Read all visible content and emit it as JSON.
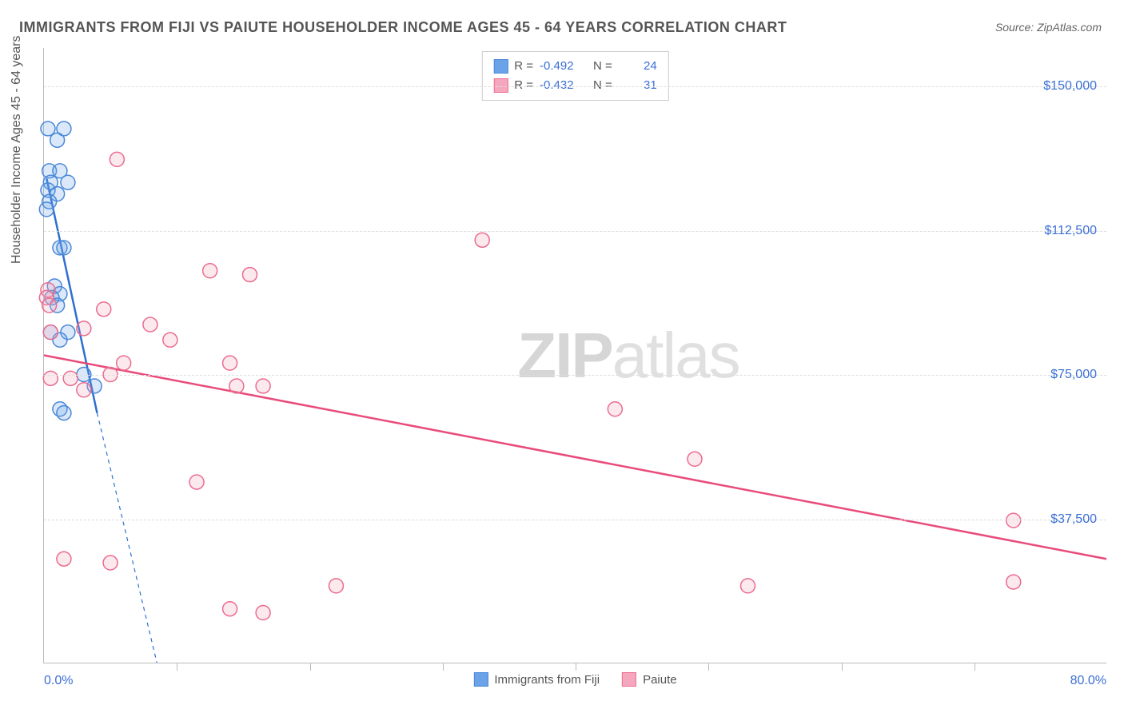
{
  "title": "IMMIGRANTS FROM FIJI VS PAIUTE HOUSEHOLDER INCOME AGES 45 - 64 YEARS CORRELATION CHART",
  "source_label": "Source: ZipAtlas.com",
  "ylabel": "Householder Income Ages 45 - 64 years",
  "watermark_a": "ZIP",
  "watermark_b": "atlas",
  "chart": {
    "type": "scatter",
    "background_color": "#ffffff",
    "axis_color": "#bbbbbb",
    "grid_color": "#dddddd",
    "tick_label_color": "#3b6fd6",
    "label_color": "#555555",
    "title_fontsize": 18,
    "label_fontsize": 16,
    "tick_fontsize": 16,
    "xlim": [
      0,
      80
    ],
    "ylim": [
      0,
      160000
    ],
    "x_axis_label_left": "0.0%",
    "x_axis_label_right": "80.0%",
    "yticks": [
      37500,
      75000,
      112500,
      150000
    ],
    "ytick_labels": [
      "$37,500",
      "$75,000",
      "$112,500",
      "$150,000"
    ],
    "xtick_positions": [
      0,
      10,
      20,
      30,
      40,
      50,
      60,
      70,
      80
    ],
    "marker_radius": 9,
    "marker_fill_opacity": 0.25,
    "marker_stroke_width": 1.5,
    "trend_line_width": 2.5,
    "series": [
      {
        "name": "Immigrants from Fiji",
        "color": "#6ba3e8",
        "stroke": "#4a88d8",
        "trend_color": "#2f6fd0",
        "R": -0.492,
        "N": 24,
        "trend_segment": {
          "x1": 0.2,
          "y1": 126000,
          "x2": 4.0,
          "y2": 65000
        },
        "trend_dash_extension": {
          "x1": 4.0,
          "y1": 65000,
          "x2": 8.5,
          "y2": 0
        },
        "points": [
          {
            "x": 0.3,
            "y": 139000
          },
          {
            "x": 1.5,
            "y": 139000
          },
          {
            "x": 1.0,
            "y": 136000
          },
          {
            "x": 0.4,
            "y": 128000
          },
          {
            "x": 1.2,
            "y": 128000
          },
          {
            "x": 0.5,
            "y": 125000
          },
          {
            "x": 1.8,
            "y": 125000
          },
          {
            "x": 0.3,
            "y": 123000
          },
          {
            "x": 1.0,
            "y": 122000
          },
          {
            "x": 0.4,
            "y": 120000
          },
          {
            "x": 0.2,
            "y": 118000
          },
          {
            "x": 1.2,
            "y": 108000
          },
          {
            "x": 1.5,
            "y": 108000
          },
          {
            "x": 0.8,
            "y": 98000
          },
          {
            "x": 1.2,
            "y": 96000
          },
          {
            "x": 0.6,
            "y": 95000
          },
          {
            "x": 1.0,
            "y": 93000
          },
          {
            "x": 0.5,
            "y": 86000
          },
          {
            "x": 1.8,
            "y": 86000
          },
          {
            "x": 1.2,
            "y": 84000
          },
          {
            "x": 3.0,
            "y": 75000
          },
          {
            "x": 3.8,
            "y": 72000
          },
          {
            "x": 1.2,
            "y": 66000
          },
          {
            "x": 1.5,
            "y": 65000
          }
        ]
      },
      {
        "name": "Paiute",
        "color": "#f5a8bd",
        "stroke": "#ec6b8f",
        "trend_color": "#e94b7a",
        "R": -0.432,
        "N": 31,
        "trend_segment": {
          "x1": 0,
          "y1": 80000,
          "x2": 80,
          "y2": 27000
        },
        "points": [
          {
            "x": 5.5,
            "y": 131000
          },
          {
            "x": 33.0,
            "y": 110000
          },
          {
            "x": 12.5,
            "y": 102000
          },
          {
            "x": 15.5,
            "y": 101000
          },
          {
            "x": 0.3,
            "y": 97000
          },
          {
            "x": 0.2,
            "y": 95000
          },
          {
            "x": 4.5,
            "y": 92000
          },
          {
            "x": 8.0,
            "y": 88000
          },
          {
            "x": 3.0,
            "y": 87000
          },
          {
            "x": 0.5,
            "y": 86000
          },
          {
            "x": 9.5,
            "y": 84000
          },
          {
            "x": 6.0,
            "y": 78000
          },
          {
            "x": 14.0,
            "y": 78000
          },
          {
            "x": 0.5,
            "y": 74000
          },
          {
            "x": 2.0,
            "y": 74000
          },
          {
            "x": 5.0,
            "y": 75000
          },
          {
            "x": 3.0,
            "y": 71000
          },
          {
            "x": 14.5,
            "y": 72000
          },
          {
            "x": 16.5,
            "y": 72000
          },
          {
            "x": 43.0,
            "y": 66000
          },
          {
            "x": 49.0,
            "y": 53000
          },
          {
            "x": 11.5,
            "y": 47000
          },
          {
            "x": 73.0,
            "y": 37000
          },
          {
            "x": 1.5,
            "y": 27000
          },
          {
            "x": 5.0,
            "y": 26000
          },
          {
            "x": 73.0,
            "y": 21000
          },
          {
            "x": 22.0,
            "y": 20000
          },
          {
            "x": 53.0,
            "y": 20000
          },
          {
            "x": 14.0,
            "y": 14000
          },
          {
            "x": 16.5,
            "y": 13000
          },
          {
            "x": 0.4,
            "y": 93000
          }
        ]
      }
    ]
  },
  "legend_top": {
    "R_label": "R =",
    "N_label": "N ="
  }
}
